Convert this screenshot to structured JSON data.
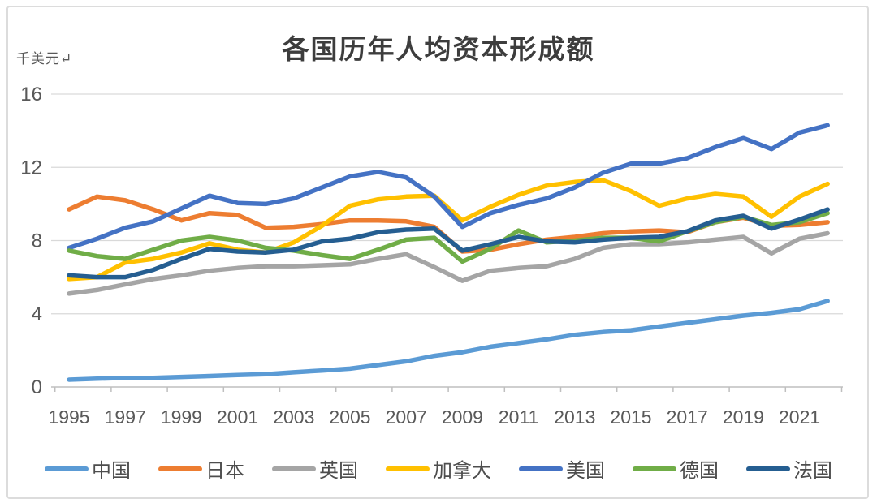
{
  "chart_data": {
    "type": "line",
    "title": "各国历年人均资本形成额",
    "unit_label": "千美元↵",
    "ylabel": "千美元",
    "xlabel": "",
    "ylim": [
      0,
      16
    ],
    "y_ticks": [
      "0",
      "4",
      "8",
      "12",
      "16"
    ],
    "x": [
      1995,
      1996,
      1997,
      1998,
      1999,
      2000,
      2001,
      2002,
      2003,
      2004,
      2005,
      2006,
      2007,
      2008,
      2009,
      2010,
      2011,
      2012,
      2013,
      2014,
      2015,
      2016,
      2017,
      2018,
      2019,
      2020,
      2021,
      2022
    ],
    "x_tick_labels": [
      "1995",
      "1997",
      "1999",
      "2001",
      "2003",
      "2005",
      "2007",
      "2009",
      "2011",
      "2013",
      "2015",
      "2017",
      "2019",
      "2021"
    ],
    "grid": true,
    "legend_position": "bottom",
    "axis_color": "#BFBFBF",
    "grid_color": "#D9D9D9",
    "tick_label_color": "#595959",
    "series": [
      {
        "name": "中国",
        "key": "china",
        "color": "#5B9BD5",
        "values": [
          0.4,
          0.45,
          0.5,
          0.5,
          0.55,
          0.6,
          0.65,
          0.7,
          0.8,
          0.9,
          1.0,
          1.2,
          1.4,
          1.7,
          1.9,
          2.2,
          2.4,
          2.6,
          2.85,
          3.0,
          3.1,
          3.3,
          3.5,
          3.7,
          3.9,
          4.05,
          4.25,
          4.7
        ]
      },
      {
        "name": "日本",
        "key": "japan",
        "color": "#ED7D31",
        "values": [
          9.7,
          10.4,
          10.2,
          9.7,
          9.1,
          9.5,
          9.4,
          8.7,
          8.75,
          8.9,
          9.1,
          9.1,
          9.05,
          8.75,
          7.4,
          7.5,
          7.8,
          8.05,
          8.2,
          8.4,
          8.5,
          8.55,
          8.45,
          9.0,
          9.25,
          8.8,
          8.85,
          9.0
        ]
      },
      {
        "name": "英国",
        "key": "uk",
        "color": "#A5A5A5",
        "values": [
          5.1,
          5.3,
          5.6,
          5.9,
          6.1,
          6.35,
          6.5,
          6.6,
          6.6,
          6.65,
          6.7,
          7.0,
          7.25,
          6.55,
          5.8,
          6.35,
          6.5,
          6.6,
          7.0,
          7.6,
          7.8,
          7.8,
          7.9,
          8.05,
          8.2,
          7.3,
          8.1,
          8.4
        ]
      },
      {
        "name": "加拿大",
        "key": "canada",
        "color": "#FFC000",
        "values": [
          5.9,
          6.0,
          6.8,
          7.0,
          7.35,
          7.85,
          7.5,
          7.35,
          7.9,
          8.8,
          9.9,
          10.25,
          10.4,
          10.45,
          9.1,
          9.85,
          10.5,
          11.0,
          11.2,
          11.3,
          10.7,
          9.9,
          10.3,
          10.55,
          10.4,
          9.3,
          10.4,
          11.1
        ]
      },
      {
        "name": "美国",
        "key": "usa",
        "color": "#4472C4",
        "values": [
          7.6,
          8.1,
          8.7,
          9.05,
          9.75,
          10.45,
          10.05,
          10.0,
          10.3,
          10.9,
          11.5,
          11.75,
          11.45,
          10.4,
          8.75,
          9.5,
          9.95,
          10.3,
          10.9,
          11.7,
          12.2,
          12.2,
          12.5,
          13.1,
          13.6,
          13.0,
          13.9,
          14.3
        ]
      },
      {
        "name": "德国",
        "key": "germany",
        "color": "#70AD47",
        "values": [
          7.45,
          7.15,
          7.0,
          7.5,
          8.0,
          8.2,
          8.0,
          7.6,
          7.45,
          7.2,
          7.0,
          7.5,
          8.05,
          8.15,
          6.85,
          7.55,
          8.55,
          7.9,
          8.0,
          8.15,
          8.15,
          7.95,
          8.5,
          9.0,
          9.3,
          8.85,
          9.0,
          9.5
        ]
      },
      {
        "name": "法国",
        "key": "france",
        "color": "#255E91",
        "values": [
          6.1,
          6.0,
          6.0,
          6.4,
          7.0,
          7.55,
          7.4,
          7.35,
          7.5,
          7.95,
          8.1,
          8.45,
          8.6,
          8.65,
          7.45,
          7.8,
          8.2,
          7.95,
          7.9,
          8.05,
          8.15,
          8.2,
          8.5,
          9.1,
          9.35,
          8.65,
          9.15,
          9.7
        ]
      }
    ]
  }
}
